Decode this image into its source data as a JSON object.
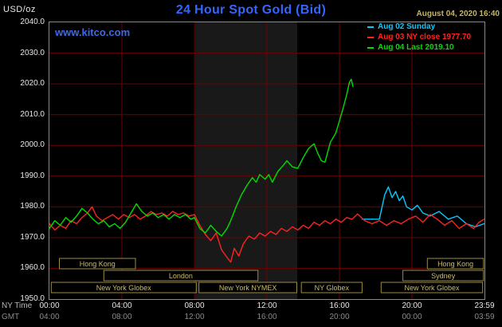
{
  "header": {
    "units_label": "USD/oz",
    "title": "24 Hour Spot Gold (Bid)",
    "datetime": "August 04, 2020 16:40",
    "watermark": "www.kitco.com"
  },
  "footer": {
    "ny_time_label": "NY Time",
    "gmt_label": "GMT"
  },
  "colors": {
    "background": "#000000",
    "title_blue": "#3366ff",
    "watermark_blue": "#4169e1",
    "date_tan": "#c8b560",
    "grid_red": "#700000",
    "border_gray": "#8a8a8a",
    "session_border": "#9b8b45",
    "session_text": "#cdbb6a",
    "band_gray": "#191919",
    "axis_text": "#e8e8e8",
    "gmt_text": "#8a8a8a"
  },
  "chart_data": {
    "type": "line",
    "title": "24 Hour Spot Gold (Bid)",
    "datetime": "August 04, 2020 16:40",
    "x_axis": {
      "label": "NY Time",
      "range_hours": [
        0,
        24
      ],
      "tick_hours": [
        0,
        4,
        8,
        12,
        16,
        20,
        23.983
      ],
      "ticks_ny": [
        "00:00",
        "04:00",
        "08:00",
        "12:00",
        "16:00",
        "20:00",
        "23:59"
      ],
      "ticks_gmt": [
        "04:00",
        "08:00",
        "12:00",
        "16:00",
        "20:00",
        "00:00",
        "03:59"
      ]
    },
    "y_axis": {
      "label": "USD/oz",
      "min": 1950,
      "max": 2040,
      "tick_step": 10,
      "tick_labels": [
        "2040.0",
        "2030.0",
        "2020.0",
        "2010.0",
        "2000.0",
        "1990.0",
        "1980.0",
        "1970.0",
        "1960.0",
        "1950.0"
      ],
      "grid": true
    },
    "legend_position": "top-right",
    "nymex_band_hours": [
      8.04,
      13.67
    ],
    "series": [
      {
        "id": "aug02",
        "name": "Aug 02 Sunday",
        "color": "#00ccff",
        "points": [
          [
            17.25,
            1976
          ],
          [
            18.2,
            1976
          ],
          [
            18.35,
            1980
          ],
          [
            18.5,
            1984
          ],
          [
            18.7,
            1986.5
          ],
          [
            18.9,
            1983
          ],
          [
            19.1,
            1985
          ],
          [
            19.3,
            1982
          ],
          [
            19.5,
            1983.5
          ],
          [
            19.7,
            1980
          ],
          [
            20,
            1979
          ],
          [
            20.3,
            1980.5
          ],
          [
            20.6,
            1978
          ],
          [
            21,
            1977
          ],
          [
            21.5,
            1978.5
          ],
          [
            22,
            1976
          ],
          [
            22.5,
            1977
          ],
          [
            23,
            1974.5
          ],
          [
            23.5,
            1973.5
          ],
          [
            23.98,
            1974.5
          ]
        ]
      },
      {
        "id": "aug03",
        "name": "Aug 03 NY close 1977.70",
        "color": "#ff2222",
        "close": 1977.7,
        "points": [
          [
            0,
            1974.5
          ],
          [
            0.3,
            1972.5
          ],
          [
            0.6,
            1974
          ],
          [
            0.9,
            1973
          ],
          [
            1.2,
            1975.5
          ],
          [
            1.5,
            1974.5
          ],
          [
            1.8,
            1976.5
          ],
          [
            2.1,
            1978
          ],
          [
            2.35,
            1980
          ],
          [
            2.6,
            1977
          ],
          [
            2.9,
            1975.5
          ],
          [
            3.2,
            1976.5
          ],
          [
            3.5,
            1977.5
          ],
          [
            3.8,
            1976
          ],
          [
            4.1,
            1977.5
          ],
          [
            4.4,
            1976.5
          ],
          [
            4.7,
            1977.5
          ],
          [
            5,
            1976
          ],
          [
            5.3,
            1977
          ],
          [
            5.6,
            1978.5
          ],
          [
            5.9,
            1977.5
          ],
          [
            6.2,
            1978
          ],
          [
            6.5,
            1977
          ],
          [
            6.8,
            1978.5
          ],
          [
            7.1,
            1977.5
          ],
          [
            7.4,
            1978
          ],
          [
            7.7,
            1977
          ],
          [
            8,
            1977.5
          ],
          [
            8.3,
            1974
          ],
          [
            8.6,
            1971
          ],
          [
            8.9,
            1969
          ],
          [
            9.2,
            1971.5
          ],
          [
            9.5,
            1966
          ],
          [
            9.8,
            1963.5
          ],
          [
            10,
            1962
          ],
          [
            10.2,
            1966.5
          ],
          [
            10.45,
            1964
          ],
          [
            10.7,
            1968
          ],
          [
            11,
            1970.5
          ],
          [
            11.3,
            1969.5
          ],
          [
            11.6,
            1971.5
          ],
          [
            11.9,
            1970.5
          ],
          [
            12.2,
            1972
          ],
          [
            12.5,
            1971
          ],
          [
            12.8,
            1973
          ],
          [
            13.1,
            1972
          ],
          [
            13.4,
            1973.5
          ],
          [
            13.7,
            1972.5
          ],
          [
            14,
            1974
          ],
          [
            14.3,
            1973
          ],
          [
            14.6,
            1975
          ],
          [
            14.9,
            1974
          ],
          [
            15.2,
            1975.5
          ],
          [
            15.5,
            1974.5
          ],
          [
            15.8,
            1976
          ],
          [
            16.1,
            1975
          ],
          [
            16.4,
            1976.5
          ],
          [
            16.7,
            1976
          ],
          [
            17,
            1977.7
          ],
          [
            17.4,
            1975.5
          ],
          [
            17.8,
            1974.5
          ],
          [
            18.2,
            1975.5
          ],
          [
            18.6,
            1974
          ],
          [
            19,
            1975.5
          ],
          [
            19.4,
            1974.5
          ],
          [
            19.8,
            1976
          ],
          [
            20.2,
            1977
          ],
          [
            20.6,
            1975
          ],
          [
            21,
            1977.5
          ],
          [
            21.4,
            1976
          ],
          [
            21.8,
            1974
          ],
          [
            22.2,
            1975.5
          ],
          [
            22.6,
            1973
          ],
          [
            23,
            1974.5
          ],
          [
            23.4,
            1973
          ],
          [
            23.7,
            1975
          ],
          [
            23.98,
            1976
          ]
        ]
      },
      {
        "id": "aug04",
        "name": "Aug 04 Last 2019.10",
        "color": "#00dd00",
        "last": 2019.1,
        "points": [
          [
            0,
            1973
          ],
          [
            0.3,
            1975.5
          ],
          [
            0.6,
            1974
          ],
          [
            0.9,
            1976.5
          ],
          [
            1.2,
            1975
          ],
          [
            1.5,
            1977
          ],
          [
            1.8,
            1979.5
          ],
          [
            2.1,
            1978
          ],
          [
            2.4,
            1976
          ],
          [
            2.7,
            1974.5
          ],
          [
            3,
            1975.5
          ],
          [
            3.3,
            1973.5
          ],
          [
            3.6,
            1974.5
          ],
          [
            3.9,
            1973
          ],
          [
            4.2,
            1975
          ],
          [
            4.5,
            1978
          ],
          [
            4.8,
            1981
          ],
          [
            5.1,
            1978.5
          ],
          [
            5.4,
            1977
          ],
          [
            5.7,
            1978
          ],
          [
            6,
            1976.5
          ],
          [
            6.3,
            1977.5
          ],
          [
            6.6,
            1976
          ],
          [
            6.9,
            1977.5
          ],
          [
            7.2,
            1976.5
          ],
          [
            7.5,
            1977.5
          ],
          [
            7.8,
            1976
          ],
          [
            8,
            1976.5
          ],
          [
            8.3,
            1973
          ],
          [
            8.6,
            1971.5
          ],
          [
            8.9,
            1974
          ],
          [
            9.2,
            1972
          ],
          [
            9.5,
            1970.5
          ],
          [
            9.8,
            1973
          ],
          [
            10,
            1975.5
          ],
          [
            10.3,
            1980
          ],
          [
            10.6,
            1984
          ],
          [
            10.9,
            1987
          ],
          [
            11.2,
            1989.5
          ],
          [
            11.4,
            1988
          ],
          [
            11.6,
            1990.5
          ],
          [
            11.9,
            1989
          ],
          [
            12.1,
            1990.5
          ],
          [
            12.3,
            1988
          ],
          [
            12.6,
            1991.5
          ],
          [
            12.9,
            1993.5
          ],
          [
            13.1,
            1995
          ],
          [
            13.4,
            1993
          ],
          [
            13.7,
            1992.5
          ],
          [
            14,
            1996
          ],
          [
            14.3,
            1999
          ],
          [
            14.6,
            2000.5
          ],
          [
            14.8,
            1997.5
          ],
          [
            15,
            1995
          ],
          [
            15.2,
            1994.5
          ],
          [
            15.5,
            2001
          ],
          [
            15.8,
            2004
          ],
          [
            16,
            2008
          ],
          [
            16.2,
            2012
          ],
          [
            16.4,
            2016.5
          ],
          [
            16.55,
            2020.5
          ],
          [
            16.65,
            2021.5
          ],
          [
            16.75,
            2019.1
          ]
        ]
      }
    ],
    "sessions": [
      {
        "row": 0,
        "label": "Hong Kong",
        "start_h": 0.55,
        "end_h": 4.75
      },
      {
        "row": 0,
        "label": "Hong Kong",
        "start_h": 20.85,
        "end_h": 23.95
      },
      {
        "row": 1,
        "label": "London",
        "start_h": 3.0,
        "end_h": 11.5
      },
      {
        "row": 1,
        "label": "Sydney",
        "start_h": 19.5,
        "end_h": 23.95
      },
      {
        "row": 2,
        "label": "New York Globex",
        "start_h": 0.1,
        "end_h": 8.1
      },
      {
        "row": 2,
        "label": "New York NYMEX",
        "start_h": 8.25,
        "end_h": 13.65
      },
      {
        "row": 2,
        "label": "NY Globex",
        "start_h": 13.9,
        "end_h": 17.25
      },
      {
        "row": 2,
        "label": "New York Globex",
        "start_h": 18.3,
        "end_h": 23.9
      }
    ]
  }
}
